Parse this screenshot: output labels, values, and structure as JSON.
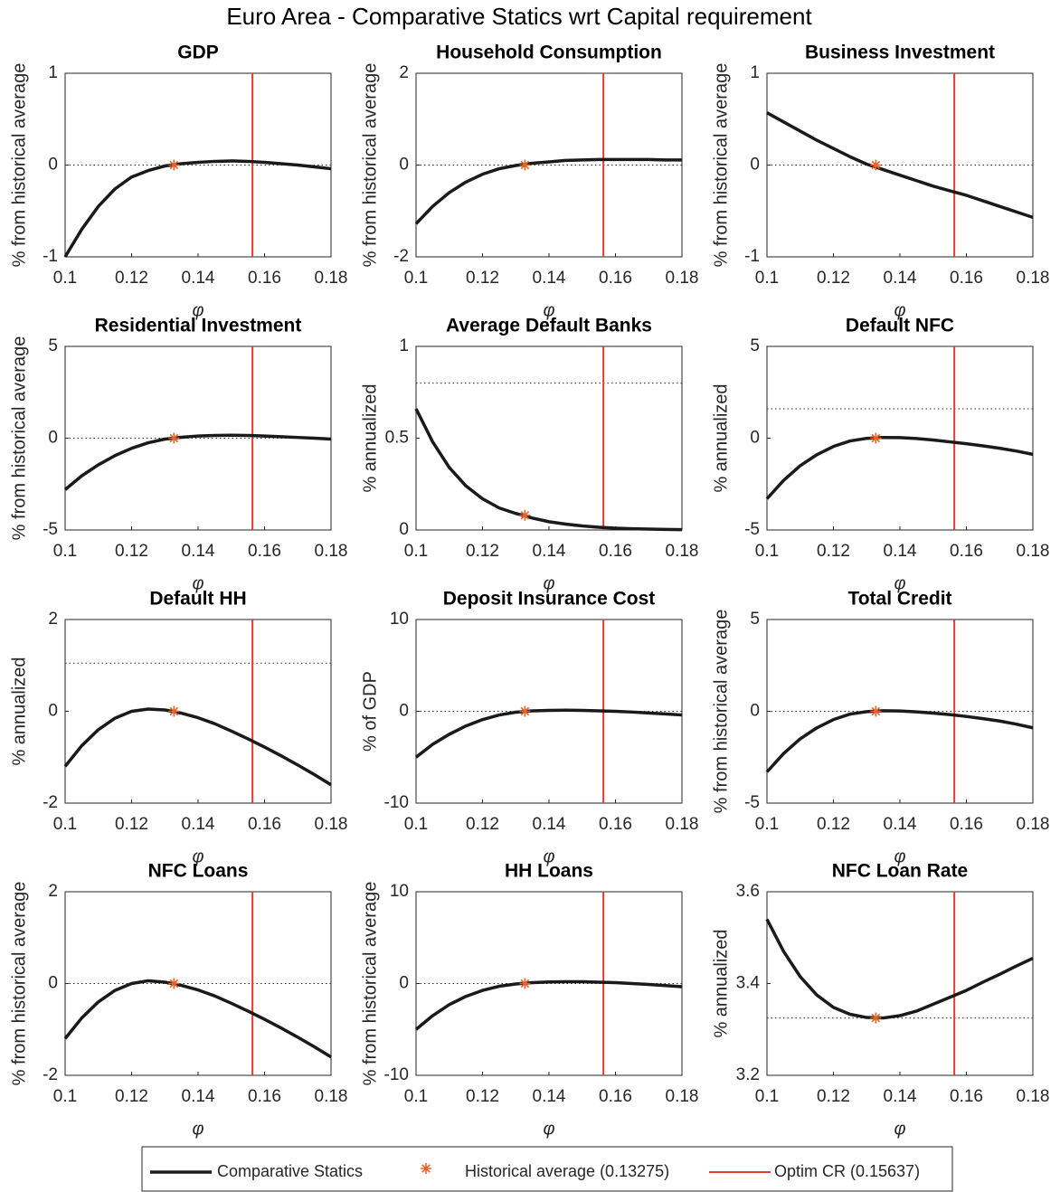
{
  "title": "Euro Area  - Comparative Statics wrt Capital requirement",
  "legend": [
    "Comparative Statics",
    "Historical average (0.13275)",
    "Optim CR (0.15637)"
  ],
  "hist_phi": 0.13275,
  "optim_phi": 0.15637,
  "curve_color": "#1a1a1a",
  "hist_color": "#e8622a",
  "optim_color": "#e03c31",
  "chart_data": [
    {
      "type": "line",
      "title": "GDP",
      "xlabel": "φ",
      "ylabel": "% from historical average",
      "xlim": [
        0.1,
        0.18
      ],
      "xticks": [
        0.1,
        0.12,
        0.14,
        0.16,
        0.18
      ],
      "ylim": [
        -1,
        1
      ],
      "yticks": [
        -1,
        0,
        1
      ],
      "reference": 0,
      "hist_value": 0,
      "x": [
        0.1,
        0.105,
        0.11,
        0.115,
        0.12,
        0.125,
        0.13,
        0.135,
        0.14,
        0.145,
        0.15,
        0.155,
        0.16,
        0.165,
        0.17,
        0.175,
        0.18
      ],
      "values": [
        -1,
        -0.7,
        -0.45,
        -0.26,
        -0.13,
        -0.06,
        -0.01,
        0.015,
        0.03,
        0.04,
        0.045,
        0.04,
        0.03,
        0.015,
        0,
        -0.02,
        -0.04
      ]
    },
    {
      "type": "line",
      "title": "Household Consumption",
      "xlabel": "φ",
      "ylabel": "% from historical average",
      "xlim": [
        0.1,
        0.18
      ],
      "xticks": [
        0.1,
        0.12,
        0.14,
        0.16,
        0.18
      ],
      "ylim": [
        -2,
        2
      ],
      "yticks": [
        -2,
        0,
        2
      ],
      "reference": 0,
      "hist_value": 0,
      "x": [
        0.1,
        0.105,
        0.11,
        0.115,
        0.12,
        0.125,
        0.13,
        0.135,
        0.14,
        0.145,
        0.15,
        0.155,
        0.16,
        0.165,
        0.17,
        0.175,
        0.18
      ],
      "values": [
        -1.28,
        -0.9,
        -0.6,
        -0.37,
        -0.2,
        -0.08,
        -0.01,
        0.04,
        0.07,
        0.1,
        0.11,
        0.12,
        0.12,
        0.12,
        0.12,
        0.11,
        0.11
      ]
    },
    {
      "type": "line",
      "title": "Business Investment",
      "xlabel": "φ",
      "ylabel": "% from historical average",
      "xlim": [
        0.1,
        0.18
      ],
      "xticks": [
        0.1,
        0.12,
        0.14,
        0.16,
        0.18
      ],
      "ylim": [
        -1,
        1
      ],
      "yticks": [
        -1,
        0,
        1
      ],
      "reference": 0,
      "hist_value": 0,
      "x": [
        0.1,
        0.105,
        0.11,
        0.115,
        0.12,
        0.125,
        0.13,
        0.135,
        0.14,
        0.145,
        0.15,
        0.155,
        0.16,
        0.165,
        0.17,
        0.175,
        0.18
      ],
      "values": [
        0.57,
        0.47,
        0.37,
        0.27,
        0.18,
        0.09,
        0.01,
        -0.05,
        -0.11,
        -0.17,
        -0.23,
        -0.28,
        -0.33,
        -0.39,
        -0.45,
        -0.51,
        -0.57
      ]
    },
    {
      "type": "line",
      "title": "Residential Investment",
      "xlabel": "φ",
      "ylabel": "% from historical average",
      "xlim": [
        0.1,
        0.18
      ],
      "xticks": [
        0.1,
        0.12,
        0.14,
        0.16,
        0.18
      ],
      "ylim": [
        -5,
        5
      ],
      "yticks": [
        -5,
        0,
        5
      ],
      "reference": 0,
      "hist_value": 0,
      "x": [
        0.1,
        0.105,
        0.11,
        0.115,
        0.12,
        0.125,
        0.13,
        0.135,
        0.14,
        0.145,
        0.15,
        0.155,
        0.16,
        0.165,
        0.17,
        0.175,
        0.18
      ],
      "values": [
        -2.8,
        -2.05,
        -1.45,
        -0.95,
        -0.55,
        -0.25,
        -0.05,
        0.05,
        0.12,
        0.15,
        0.16,
        0.15,
        0.12,
        0.08,
        0.04,
        0,
        -0.05
      ]
    },
    {
      "type": "line",
      "title": "Average Default Banks",
      "xlabel": "φ",
      "ylabel": "% annualized",
      "xlim": [
        0.1,
        0.18
      ],
      "xticks": [
        0.1,
        0.12,
        0.14,
        0.16,
        0.18
      ],
      "ylim": [
        0,
        1
      ],
      "yticks": [
        0,
        0.5,
        1
      ],
      "reference": 0.8,
      "hist_value": 0.08,
      "x": [
        0.1,
        0.105,
        0.11,
        0.115,
        0.12,
        0.125,
        0.13,
        0.135,
        0.14,
        0.145,
        0.15,
        0.155,
        0.16,
        0.165,
        0.17,
        0.175,
        0.18
      ],
      "values": [
        0.66,
        0.48,
        0.34,
        0.24,
        0.17,
        0.12,
        0.09,
        0.065,
        0.045,
        0.032,
        0.022,
        0.015,
        0.01,
        0.007,
        0.005,
        0.003,
        0.002
      ]
    },
    {
      "type": "line",
      "title": "Default NFC",
      "xlabel": "φ",
      "ylabel": "% annualized",
      "xlim": [
        0.1,
        0.18
      ],
      "xticks": [
        0.1,
        0.12,
        0.14,
        0.16,
        0.18
      ],
      "ylim": [
        -5,
        5
      ],
      "yticks": [
        -5,
        0,
        5
      ],
      "reference": 1.6,
      "hist_value": 0,
      "x": [
        0.1,
        0.105,
        0.11,
        0.115,
        0.12,
        0.125,
        0.13,
        0.135,
        0.14,
        0.145,
        0.15,
        0.155,
        0.16,
        0.165,
        0.17,
        0.175,
        0.18
      ],
      "values": [
        -3.3,
        -2.3,
        -1.5,
        -0.9,
        -0.45,
        -0.15,
        -0.01,
        0.04,
        0.03,
        -0.02,
        -0.1,
        -0.2,
        -0.3,
        -0.42,
        -0.55,
        -0.7,
        -0.88
      ]
    },
    {
      "type": "line",
      "title": "Default HH",
      "xlabel": "φ",
      "ylabel": "% annualized",
      "xlim": [
        0.1,
        0.18
      ],
      "xticks": [
        0.1,
        0.12,
        0.14,
        0.16,
        0.18
      ],
      "ylim": [
        -2,
        2
      ],
      "yticks": [
        -2,
        0,
        2
      ],
      "reference": 1.05,
      "hist_value": 0,
      "x": [
        0.1,
        0.105,
        0.11,
        0.115,
        0.12,
        0.125,
        0.13,
        0.135,
        0.14,
        0.145,
        0.15,
        0.155,
        0.16,
        0.165,
        0.17,
        0.175,
        0.18
      ],
      "values": [
        -1.2,
        -0.75,
        -0.4,
        -0.15,
        0,
        0.05,
        0.03,
        -0.04,
        -0.14,
        -0.27,
        -0.43,
        -0.6,
        -0.78,
        -0.97,
        -1.17,
        -1.38,
        -1.6
      ]
    },
    {
      "type": "line",
      "title": "Deposit Insurance Cost",
      "xlabel": "φ",
      "ylabel": "% of GDP",
      "xlim": [
        0.1,
        0.18
      ],
      "xticks": [
        0.1,
        0.12,
        0.14,
        0.16,
        0.18
      ],
      "ylim": [
        -10,
        10
      ],
      "yticks": [
        -10,
        0,
        10
      ],
      "reference": 0,
      "hist_value": 0,
      "x": [
        0.1,
        0.105,
        0.11,
        0.115,
        0.12,
        0.125,
        0.13,
        0.135,
        0.14,
        0.145,
        0.15,
        0.155,
        0.16,
        0.165,
        0.17,
        0.175,
        0.18
      ],
      "values": [
        -5,
        -3.6,
        -2.5,
        -1.6,
        -0.9,
        -0.4,
        -0.1,
        0.05,
        0.1,
        0.12,
        0.1,
        0.05,
        0,
        -0.08,
        -0.18,
        -0.28,
        -0.4
      ]
    },
    {
      "type": "line",
      "title": "Total Credit",
      "xlabel": "φ",
      "ylabel": "% from historical average",
      "xlim": [
        0.1,
        0.18
      ],
      "xticks": [
        0.1,
        0.12,
        0.14,
        0.16,
        0.18
      ],
      "ylim": [
        -5,
        5
      ],
      "yticks": [
        -5,
        0,
        5
      ],
      "reference": 0,
      "hist_value": 0,
      "x": [
        0.1,
        0.105,
        0.11,
        0.115,
        0.12,
        0.125,
        0.13,
        0.135,
        0.14,
        0.145,
        0.15,
        0.155,
        0.16,
        0.165,
        0.17,
        0.175,
        0.18
      ],
      "values": [
        -3.3,
        -2.3,
        -1.5,
        -0.9,
        -0.45,
        -0.15,
        -0.02,
        0.03,
        0.02,
        -0.03,
        -0.1,
        -0.18,
        -0.28,
        -0.4,
        -0.53,
        -0.7,
        -0.9
      ]
    },
    {
      "type": "line",
      "title": "NFC Loans",
      "xlabel": "φ",
      "ylabel": "% from historical average",
      "xlim": [
        0.1,
        0.18
      ],
      "xticks": [
        0.1,
        0.12,
        0.14,
        0.16,
        0.18
      ],
      "ylim": [
        -2,
        2
      ],
      "yticks": [
        -2,
        0,
        2
      ],
      "reference": 0,
      "hist_value": 0,
      "x": [
        0.1,
        0.105,
        0.11,
        0.115,
        0.12,
        0.125,
        0.13,
        0.135,
        0.14,
        0.145,
        0.15,
        0.155,
        0.16,
        0.165,
        0.17,
        0.175,
        0.18
      ],
      "values": [
        -1.2,
        -0.75,
        -0.4,
        -0.15,
        0,
        0.06,
        0.03,
        -0.04,
        -0.14,
        -0.27,
        -0.43,
        -0.6,
        -0.78,
        -0.97,
        -1.17,
        -1.38,
        -1.6
      ]
    },
    {
      "type": "line",
      "title": "HH Loans",
      "xlabel": "φ",
      "ylabel": "% from historical average",
      "xlim": [
        0.1,
        0.18
      ],
      "xticks": [
        0.1,
        0.12,
        0.14,
        0.16,
        0.18
      ],
      "ylim": [
        -10,
        10
      ],
      "yticks": [
        -10,
        0,
        10
      ],
      "reference": 0,
      "hist_value": 0,
      "x": [
        0.1,
        0.105,
        0.11,
        0.115,
        0.12,
        0.125,
        0.13,
        0.135,
        0.14,
        0.145,
        0.15,
        0.155,
        0.16,
        0.165,
        0.17,
        0.175,
        0.18
      ],
      "values": [
        -5,
        -3.5,
        -2.3,
        -1.4,
        -0.75,
        -0.3,
        -0.05,
        0.1,
        0.17,
        0.2,
        0.2,
        0.15,
        0.1,
        0,
        -0.1,
        -0.22,
        -0.35
      ]
    },
    {
      "type": "line",
      "title": "NFC Loan Rate",
      "xlabel": "φ",
      "ylabel": "% annualized",
      "xlim": [
        0.1,
        0.18
      ],
      "xticks": [
        0.1,
        0.12,
        0.14,
        0.16,
        0.18
      ],
      "ylim": [
        3.2,
        3.6
      ],
      "yticks": [
        3.2,
        3.4,
        3.6
      ],
      "reference": 3.325,
      "hist_value": 3.325,
      "x": [
        0.1,
        0.105,
        0.11,
        0.115,
        0.12,
        0.125,
        0.13,
        0.135,
        0.14,
        0.145,
        0.15,
        0.155,
        0.16,
        0.165,
        0.17,
        0.175,
        0.18
      ],
      "values": [
        3.54,
        3.47,
        3.415,
        3.375,
        3.348,
        3.333,
        3.326,
        3.325,
        3.33,
        3.34,
        3.355,
        3.37,
        3.385,
        3.403,
        3.42,
        3.438,
        3.455
      ]
    }
  ]
}
